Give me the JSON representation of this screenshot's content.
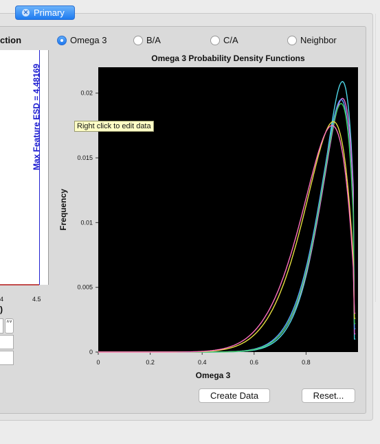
{
  "tab": {
    "label": "Primary",
    "close_glyph": "✕"
  },
  "left_panel": {
    "title": "ction",
    "esd_label": "Max Feature ESD = 4.48169",
    "tick_labels": [
      "4",
      "4.5"
    ],
    "axis_fragment": ")",
    "stepper_glyph": "˄˅"
  },
  "radios": [
    {
      "label": "Omega 3",
      "selected": true
    },
    {
      "label": "B/A",
      "selected": false
    },
    {
      "label": "C/A",
      "selected": false
    },
    {
      "label": "Neighbor",
      "selected": false
    }
  ],
  "tooltip": "Right click to edit data",
  "buttons": {
    "create": "Create Data",
    "reset": "Reset..."
  },
  "chart_data": {
    "type": "line",
    "title": "Omega 3 Probability Density Functions",
    "xlabel": "Omega 3",
    "ylabel": "Frequency",
    "xlim": [
      0,
      1.0
    ],
    "ylim": [
      0,
      0.022
    ],
    "xticks": [
      0,
      0.2,
      0.4,
      0.6,
      0.8
    ],
    "yticks": [
      0,
      0.005,
      0.01,
      0.015,
      0.02
    ],
    "background": "#000000",
    "series": [
      {
        "color": "#4fd8e8",
        "peak_x": 0.94,
        "peak_y": 0.0209,
        "a": 16,
        "b": 1.95
      },
      {
        "color": "#e070e0",
        "peak_x": 0.94,
        "peak_y": 0.0196,
        "a": 15,
        "b": 1.9
      },
      {
        "color": "#5aa0ff",
        "peak_x": 0.935,
        "peak_y": 0.0195,
        "a": 15,
        "b": 1.95
      },
      {
        "color": "#40d060",
        "peak_x": 0.935,
        "peak_y": 0.0192,
        "a": 15.5,
        "b": 2.0
      },
      {
        "color": "#e8e040",
        "peak_x": 0.905,
        "peak_y": 0.0178,
        "a": 11,
        "b": 2.05
      },
      {
        "color": "#ff70c0",
        "peak_x": 0.9,
        "peak_y": 0.0175,
        "a": 10.5,
        "b": 2.05
      }
    ]
  }
}
